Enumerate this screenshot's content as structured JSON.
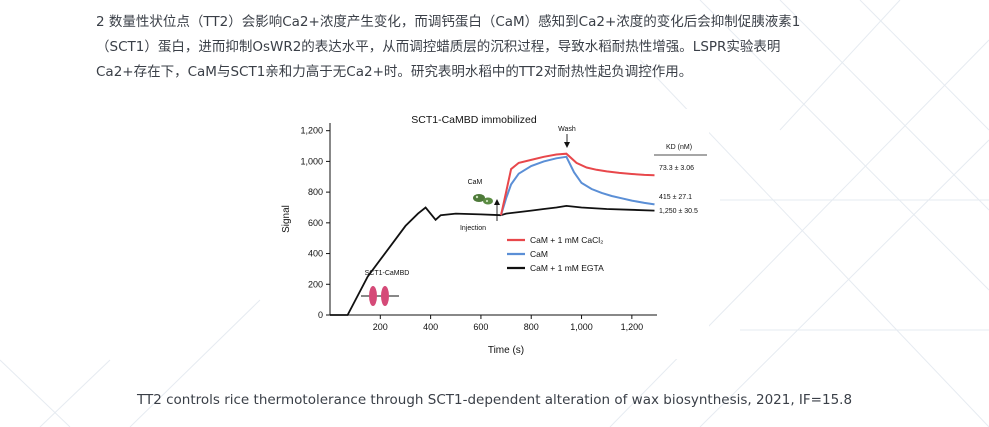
{
  "paragraph": {
    "line1": "2  数量性状位点（TT2）会影响Ca2+浓度产生变化，而调钙蛋白（CaM）感知到Ca2+浓度的变化后会抑制促胰液素1",
    "line2": "（SCT1）蛋白，进而抑制OsWR2的表达水平，从而调控蜡质层的沉积过程，导致水稻耐热性增强。LSPR实验表明",
    "line3": "Ca2+存在下，CaM与SCT1亲和力高于无Ca2+时。研究表明水稻中的TT2对耐热性起负调控作用。"
  },
  "caption": "TT2 controls rice thermotolerance through SCT1-dependent alteration of wax biosynthesis, 2021, IF=15.8",
  "chart_data": {
    "type": "line",
    "title": "SCT1-CaMBD immobilized",
    "xlabel": "Time (s)",
    "ylabel": "Signal",
    "xlim": [
      0,
      1300
    ],
    "ylim": [
      0,
      1250
    ],
    "xticks": [
      200,
      400,
      600,
      800,
      1000,
      1200
    ],
    "xtick_labels": [
      "200",
      "400",
      "600",
      "800",
      "1,000",
      "1,200"
    ],
    "yticks": [
      0,
      200,
      400,
      600,
      800,
      1000,
      1200
    ],
    "ytick_labels": [
      "0",
      "200",
      "400",
      "600",
      "800",
      "1,000",
      "1,200"
    ],
    "baseline": {
      "x": [
        0,
        70,
        150,
        250,
        300,
        350,
        380,
        420,
        440,
        500,
        600,
        680
      ],
      "y": [
        0,
        0,
        250,
        470,
        580,
        660,
        700,
        620,
        650,
        660,
        655,
        650
      ]
    },
    "series": [
      {
        "name": "CaM + 1 mM CaCl₂",
        "color": "#e8474b",
        "x": [
          680,
          700,
          720,
          750,
          800,
          850,
          900,
          940,
          980,
          1020,
          1060,
          1100,
          1150,
          1200,
          1250,
          1290
        ],
        "y": [
          650,
          800,
          950,
          990,
          1010,
          1030,
          1045,
          1050,
          990,
          960,
          945,
          935,
          925,
          918,
          912,
          910
        ]
      },
      {
        "name": "CaM",
        "color": "#5b8fd6",
        "x": [
          680,
          700,
          720,
          750,
          800,
          850,
          900,
          940,
          970,
          1000,
          1040,
          1080,
          1120,
          1160,
          1200,
          1250,
          1290
        ],
        "y": [
          650,
          760,
          850,
          920,
          970,
          1000,
          1020,
          1030,
          930,
          860,
          820,
          795,
          775,
          760,
          745,
          730,
          720
        ]
      },
      {
        "name": "CaM + 1 mM EGTA",
        "color": "#111111",
        "x": [
          680,
          700,
          750,
          800,
          850,
          900,
          940,
          1000,
          1100,
          1200,
          1290
        ],
        "y": [
          650,
          660,
          670,
          680,
          690,
          700,
          710,
          700,
          690,
          685,
          680
        ]
      }
    ],
    "kd_header": "KD (nM)",
    "kd_values": [
      "73.3 ± 3.06",
      "415 ± 27.1",
      "1,250 ± 30.5"
    ],
    "annotations": {
      "wash": "Wash",
      "cam": "CaM",
      "injection": "Injection",
      "immobilized": "SCT1-CaMBD"
    }
  }
}
